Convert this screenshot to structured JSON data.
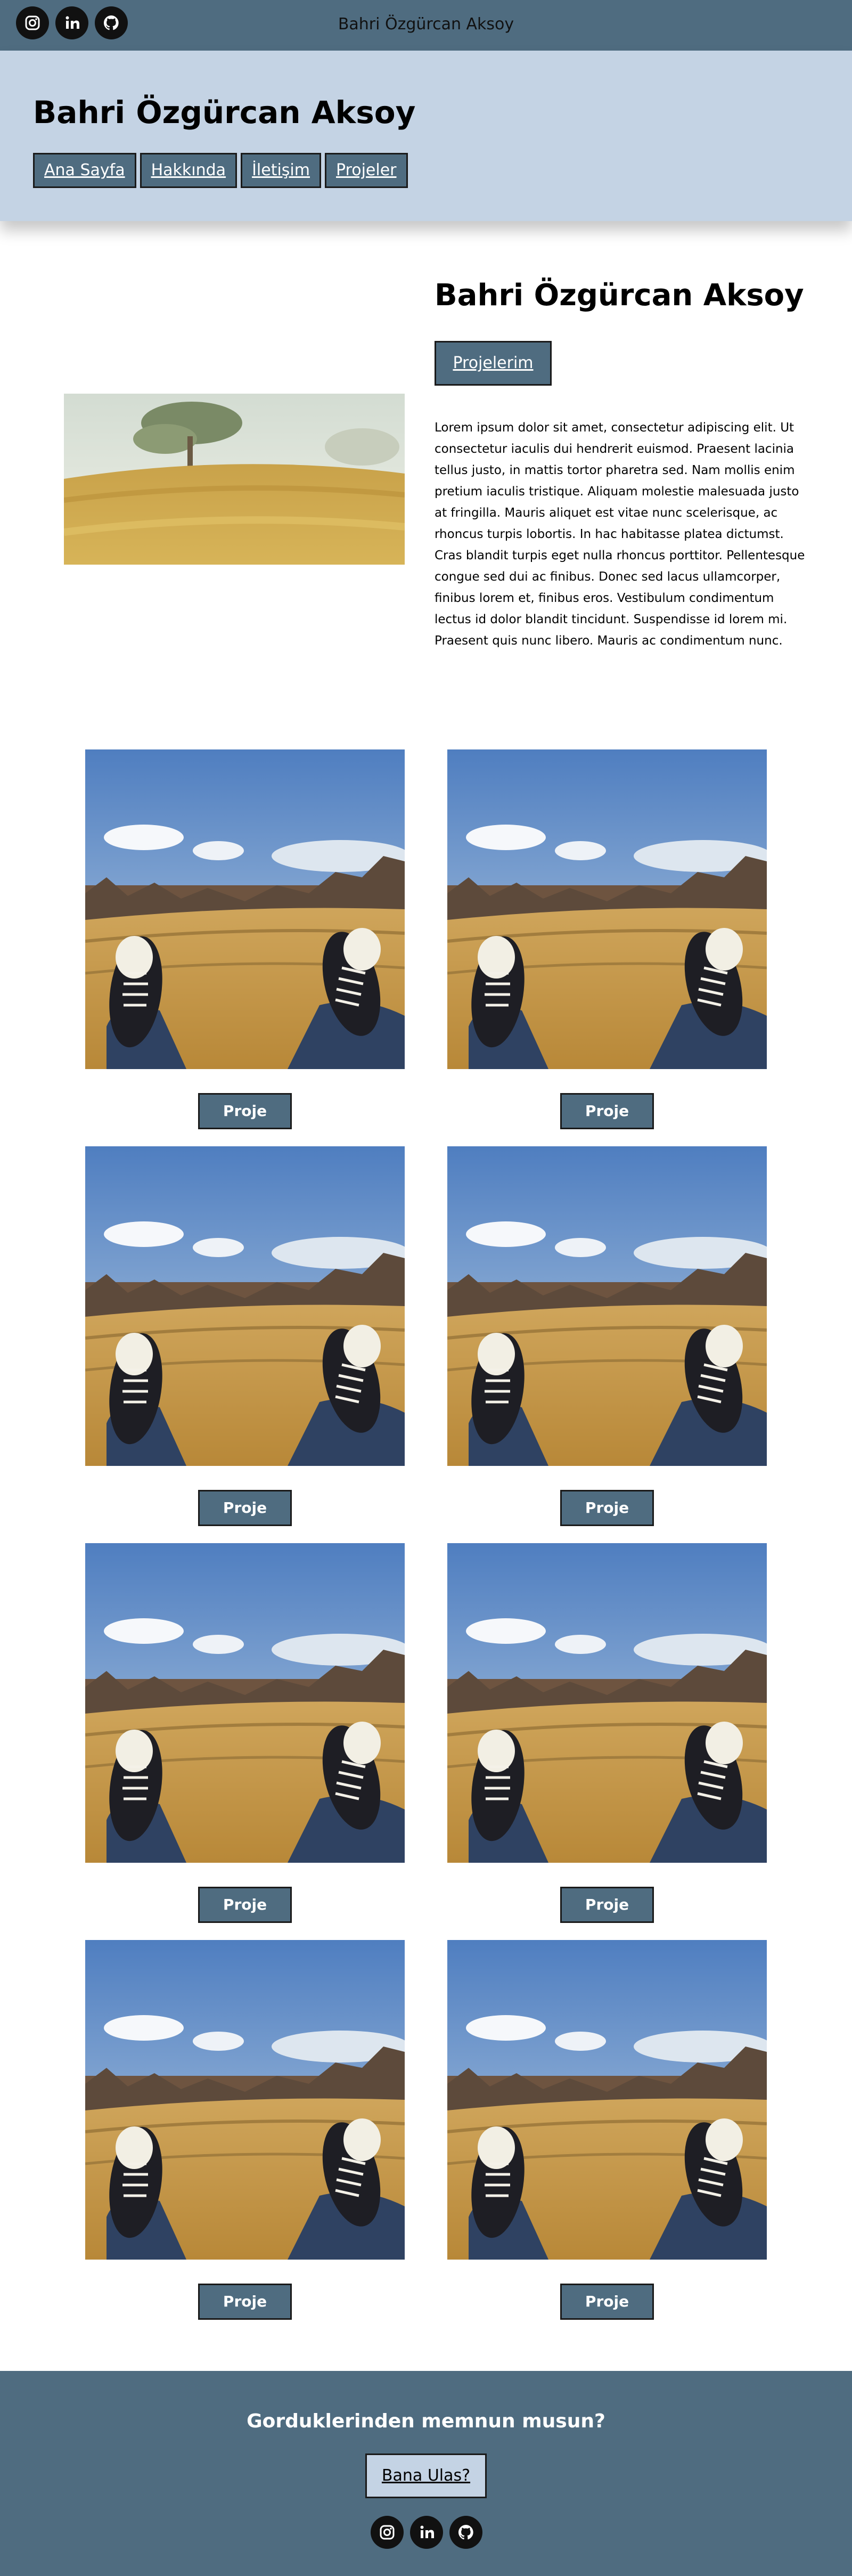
{
  "topbar": {
    "title": "Bahri Özgürcan Aksoy",
    "social": [
      "instagram-icon",
      "linkedin-icon",
      "github-icon"
    ]
  },
  "header": {
    "name": "Bahri Özgürcan Aksoy",
    "nav": [
      "Ana Sayfa",
      "Hakkında",
      "İletişim",
      "Projeler"
    ]
  },
  "hero": {
    "title": "Bahri Özgürcan Aksoy",
    "button": "Projelerim",
    "text": "Lorem ipsum dolor sit amet, consectetur adipiscing elit. Ut consectetur iaculis dui hendrerit euismod. Praesent lacinia tellus justo, in mattis tortor pharetra sed. Nam mollis enim pretium iaculis tristique. Aliquam molestie malesuada justo at fringilla. Mauris aliquet est vitae nunc scelerisque, ac rhoncus turpis lobortis. In hac habitasse platea dictumst. Cras blandit turpis eget nulla rhoncus porttitor. Pellentesque congue sed dui ac finibus. Donec sed lacus ullamcorper, finibus lorem et, finibus eros. Vestibulum condimentum lectus id dolor blandit tincidunt. Suspendisse id lorem mi. Praesent quis nunc libero. Mauris ac condimentum nunc."
  },
  "projects": [
    {
      "button": "Proje"
    },
    {
      "button": "Proje"
    },
    {
      "button": "Proje"
    },
    {
      "button": "Proje"
    },
    {
      "button": "Proje"
    },
    {
      "button": "Proje"
    },
    {
      "button": "Proje"
    },
    {
      "button": "Proje"
    }
  ],
  "footer": {
    "question": "Gorduklerinden memnun musun?",
    "contact_button": "Bana Ulas?",
    "social": [
      "instagram-icon",
      "linkedin-icon",
      "github-icon"
    ]
  },
  "colors": {
    "primary": "#4f6c80",
    "light": "#c4d3e4"
  }
}
